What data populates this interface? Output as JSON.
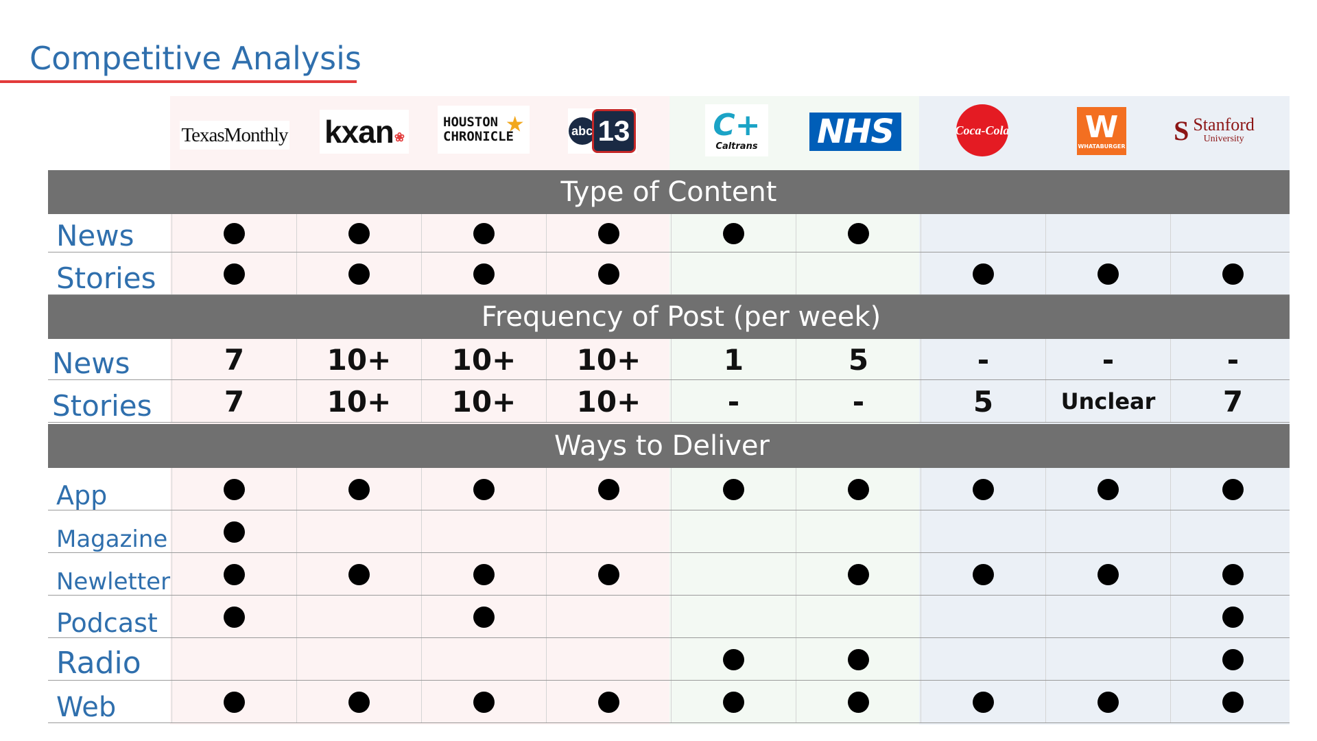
{
  "title": "Competitive Analysis",
  "colors": {
    "title": "#2f6fad",
    "underline": "#e23b3b",
    "section_header_bg": "#707070",
    "media_tint": "#fdf3f3",
    "government_tint": "#f3f9f3",
    "other_tint": "#ebf0f6"
  },
  "logos": {
    "texas_monthly": "TexasMonthly",
    "kxan": "kxan",
    "houston_line1": "HOUSTON",
    "houston_line2": "CHRONICLE",
    "abc": "abc",
    "abc_num": "13",
    "caltrans_word": "Caltrans",
    "nhs": "NHS",
    "coca_cola": "Coca-Cola",
    "whataburger": "WHATABURGER",
    "stanford_name": "Stanford",
    "stanford_univ": "University"
  },
  "sections": {
    "type_of_content": "Type of Content",
    "frequency": "Frequency of Post (per week)",
    "ways_to_deliver": "Ways to Deliver"
  },
  "rows": {
    "type_news": "News",
    "type_stories": "Stories",
    "freq_news": "News",
    "freq_stories": "Stories",
    "app": "App",
    "magazine": "Magazine",
    "newsletter": "Newletter",
    "podcast": "Podcast",
    "radio": "Radio",
    "web": "Web"
  },
  "freq_values": {
    "news": [
      "7",
      "10+",
      "10+",
      "10+",
      "1",
      "5",
      "-",
      "-",
      "-"
    ],
    "stories": [
      "7",
      "10+",
      "10+",
      "10+",
      "-",
      "-",
      "5",
      "Unclear",
      "7"
    ]
  }
}
